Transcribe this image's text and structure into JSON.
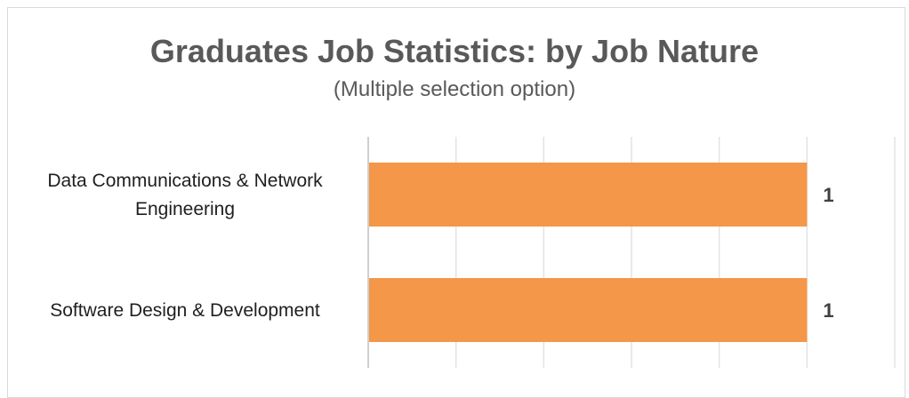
{
  "chart_data": {
    "type": "bar",
    "orientation": "horizontal",
    "title": "Graduates Job Statistics: by Job Nature",
    "subtitle": "(Multiple selection option)",
    "categories": [
      [
        "Data Communications & Network",
        "Engineering"
      ],
      [
        "Software Design & Development"
      ]
    ],
    "values": [
      1,
      1
    ],
    "data_labels": [
      "1",
      "1"
    ],
    "bar_color": "#F59748",
    "grid": "vertical",
    "legend": "none"
  }
}
